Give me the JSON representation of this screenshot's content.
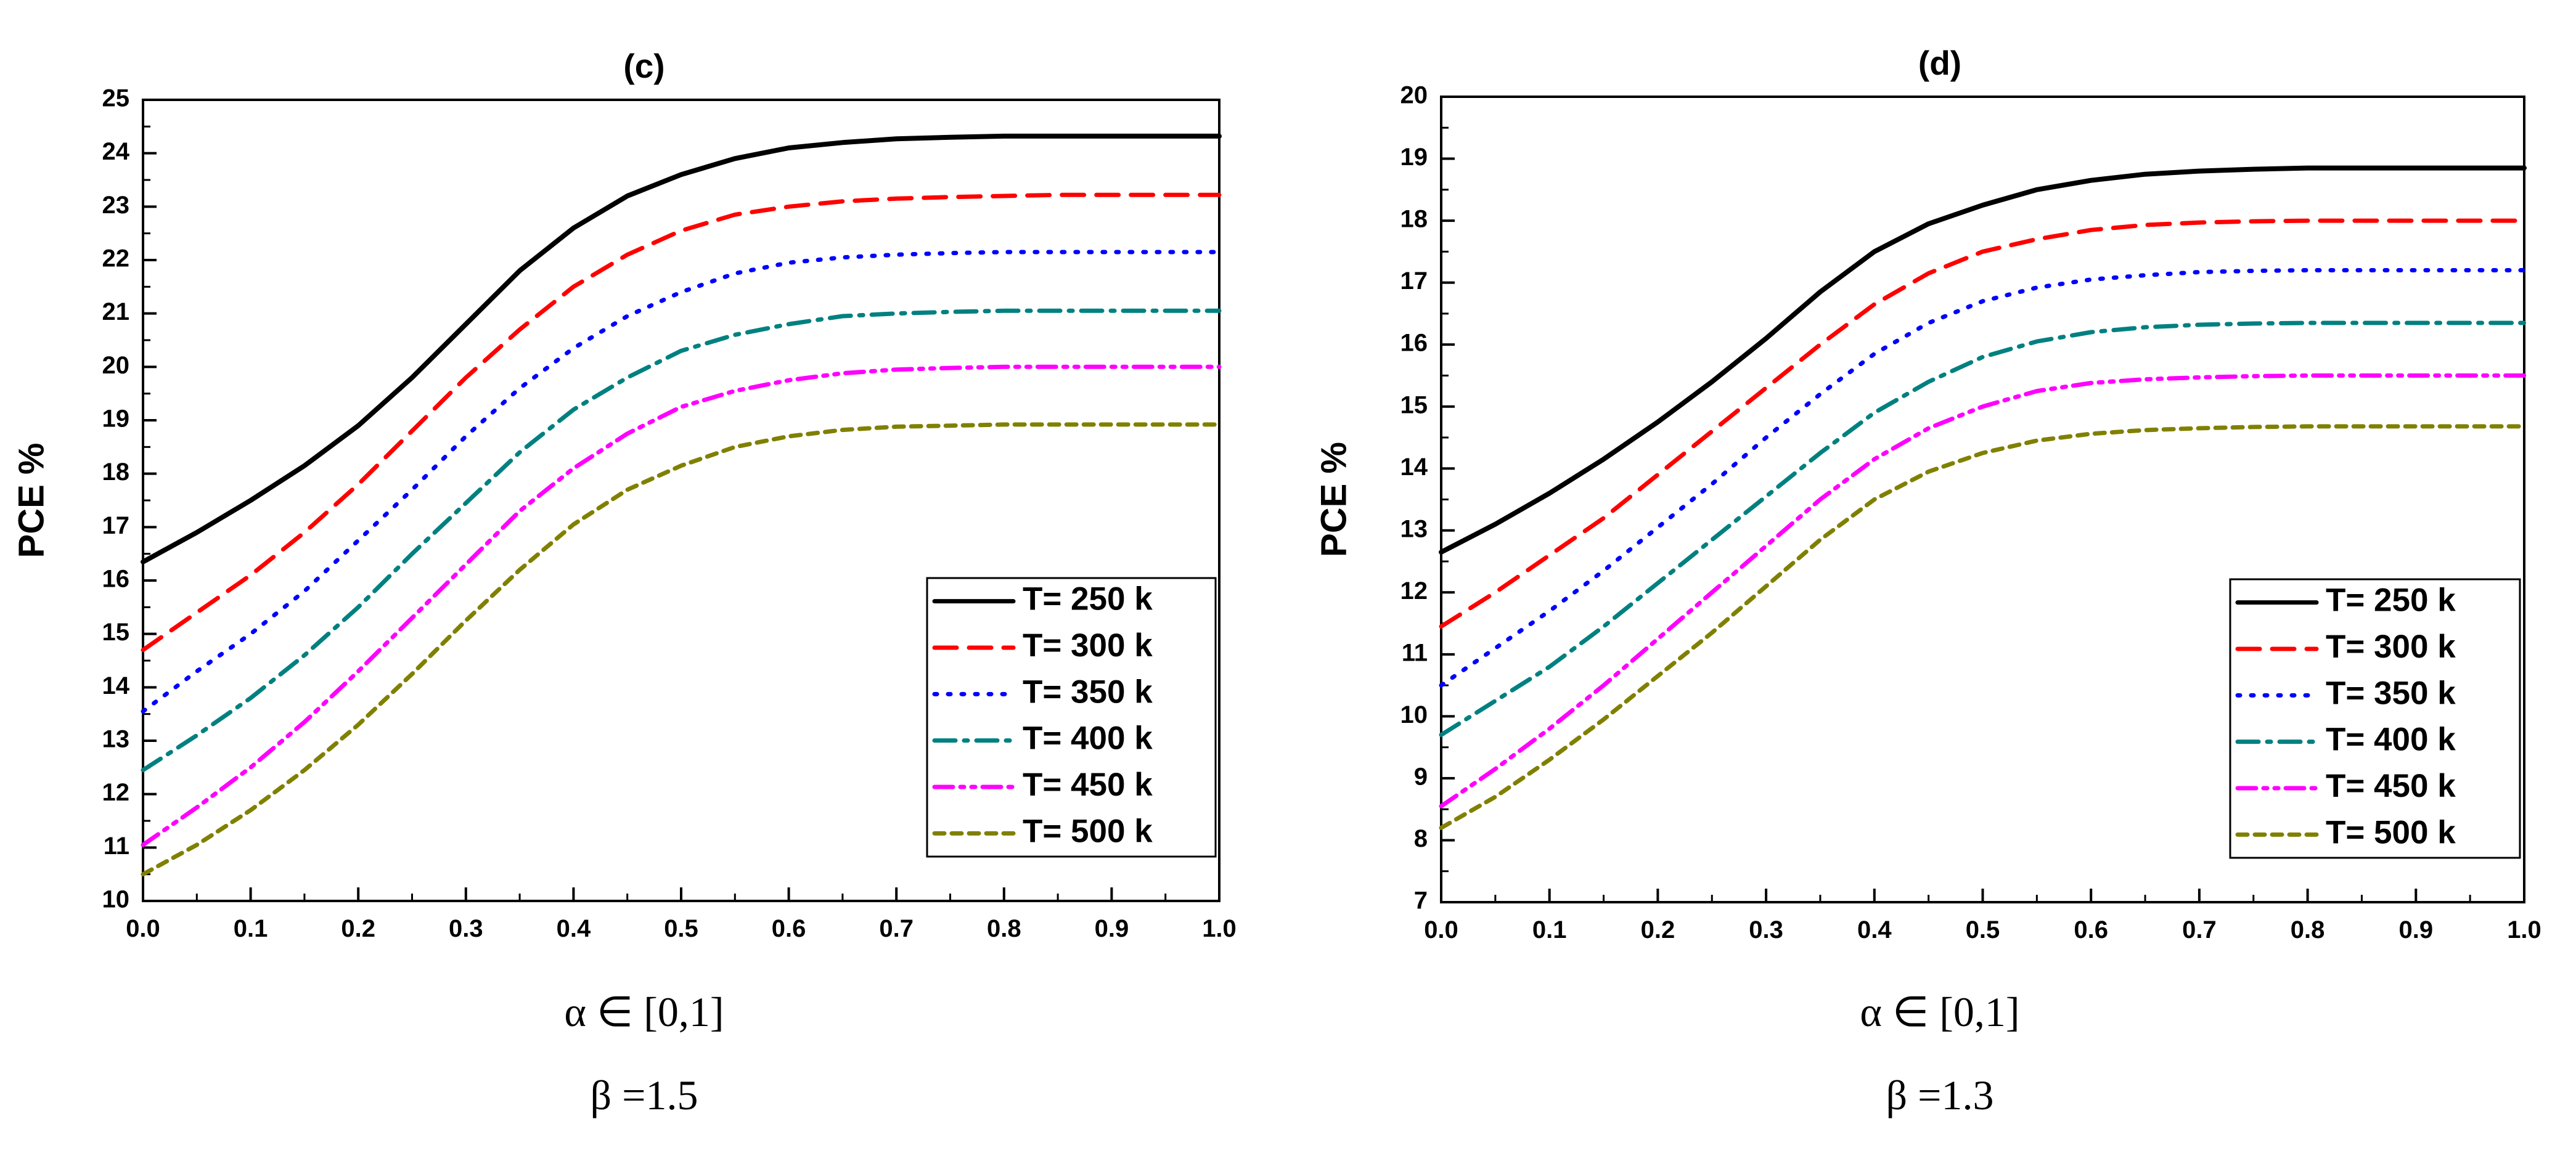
{
  "chart_data": [
    {
      "type": "line",
      "title": "(c)",
      "ylabel": "PCE %",
      "xlabel": "α ∈ [0,1]",
      "param_label": "β =1.5",
      "xlim": [
        0,
        1
      ],
      "ylim": [
        10,
        25
      ],
      "xticks": [
        "0.0",
        "0.1",
        "0.2",
        "0.3",
        "0.4",
        "0.5",
        "0.6",
        "0.7",
        "0.8",
        "0.9",
        "1.0"
      ],
      "yticks": [
        "10",
        "11",
        "12",
        "13",
        "14",
        "15",
        "16",
        "17",
        "18",
        "19",
        "20",
        "21",
        "22",
        "23",
        "24",
        "25"
      ],
      "legend_position": "bottom-right",
      "x": [
        0.0,
        0.05,
        0.1,
        0.15,
        0.2,
        0.25,
        0.3,
        0.35,
        0.4,
        0.45,
        0.5,
        0.55,
        0.6,
        0.65,
        0.7,
        0.75,
        0.8,
        0.85,
        0.9,
        0.95,
        1.0
      ],
      "series": [
        {
          "name": "T= 250 k",
          "color": "#000000",
          "dash": "solid",
          "values": [
            16.35,
            16.9,
            17.5,
            18.15,
            18.9,
            19.8,
            20.8,
            21.8,
            22.6,
            23.2,
            23.6,
            23.9,
            24.1,
            24.2,
            24.27,
            24.3,
            24.32,
            24.32,
            24.32,
            24.32,
            24.32
          ]
        },
        {
          "name": "T= 300 k",
          "color": "#ff0000",
          "dash": "dashed",
          "values": [
            14.7,
            15.4,
            16.1,
            16.9,
            17.8,
            18.8,
            19.8,
            20.7,
            21.5,
            22.1,
            22.55,
            22.85,
            23.0,
            23.1,
            23.15,
            23.18,
            23.2,
            23.22,
            23.22,
            23.22,
            23.22
          ]
        },
        {
          "name": "T= 350 k",
          "color": "#0000ff",
          "dash": "dotted",
          "values": [
            13.55,
            14.3,
            15.0,
            15.8,
            16.75,
            17.7,
            18.7,
            19.6,
            20.35,
            20.95,
            21.4,
            21.75,
            21.95,
            22.05,
            22.1,
            22.13,
            22.15,
            22.15,
            22.15,
            22.15,
            22.15
          ]
        },
        {
          "name": "T= 400 k",
          "color": "#008080",
          "dash": "dash-dot",
          "values": [
            12.45,
            13.1,
            13.8,
            14.6,
            15.5,
            16.5,
            17.45,
            18.4,
            19.2,
            19.8,
            20.3,
            20.6,
            20.8,
            20.95,
            21.0,
            21.03,
            21.05,
            21.05,
            21.05,
            21.05,
            21.05
          ]
        },
        {
          "name": "T= 450 k",
          "color": "#ff00ff",
          "dash": "dash-dot-dot",
          "values": [
            11.05,
            11.75,
            12.5,
            13.35,
            14.3,
            15.3,
            16.3,
            17.3,
            18.1,
            18.75,
            19.25,
            19.55,
            19.75,
            19.88,
            19.95,
            19.98,
            20.0,
            20.0,
            20.0,
            20.0,
            20.0
          ]
        },
        {
          "name": "T= 500 k",
          "color": "#808000",
          "dash": "short-dash",
          "values": [
            10.5,
            11.05,
            11.7,
            12.45,
            13.3,
            14.25,
            15.25,
            16.2,
            17.05,
            17.7,
            18.15,
            18.5,
            18.7,
            18.82,
            18.88,
            18.9,
            18.92,
            18.92,
            18.92,
            18.92,
            18.92
          ]
        }
      ]
    },
    {
      "type": "line",
      "title": "(d)",
      "ylabel": "PCE %",
      "xlabel": "α ∈ [0,1]",
      "param_label": "β =1.3",
      "xlim": [
        0,
        1
      ],
      "ylim": [
        7,
        20
      ],
      "xticks": [
        "0.0",
        "0.1",
        "0.2",
        "0.3",
        "0.4",
        "0.5",
        "0.6",
        "0.7",
        "0.8",
        "0.9",
        "1.0"
      ],
      "yticks": [
        "7",
        "8",
        "9",
        "10",
        "11",
        "12",
        "13",
        "14",
        "15",
        "16",
        "17",
        "18",
        "19",
        "20"
      ],
      "legend_position": "bottom-right",
      "x": [
        0.0,
        0.05,
        0.1,
        0.15,
        0.2,
        0.25,
        0.3,
        0.35,
        0.4,
        0.45,
        0.5,
        0.55,
        0.6,
        0.65,
        0.7,
        0.75,
        0.8,
        0.85,
        0.9,
        0.95,
        1.0
      ],
      "series": [
        {
          "name": "T= 250 k",
          "color": "#000000",
          "dash": "solid",
          "values": [
            12.65,
            13.1,
            13.6,
            14.15,
            14.75,
            15.4,
            16.1,
            16.85,
            17.5,
            17.95,
            18.25,
            18.5,
            18.65,
            18.75,
            18.8,
            18.83,
            18.85,
            18.85,
            18.85,
            18.85,
            18.85
          ]
        },
        {
          "name": "T= 300 k",
          "color": "#ff0000",
          "dash": "dashed",
          "values": [
            11.45,
            12.0,
            12.6,
            13.2,
            13.9,
            14.6,
            15.3,
            16.0,
            16.65,
            17.15,
            17.5,
            17.7,
            17.85,
            17.93,
            17.97,
            17.99,
            18.0,
            18.0,
            18.0,
            18.0,
            18.0
          ]
        },
        {
          "name": "T= 350 k",
          "color": "#0000ff",
          "dash": "dotted",
          "values": [
            10.5,
            11.1,
            11.7,
            12.35,
            13.05,
            13.75,
            14.5,
            15.2,
            15.85,
            16.35,
            16.7,
            16.92,
            17.05,
            17.12,
            17.17,
            17.19,
            17.2,
            17.2,
            17.2,
            17.2,
            17.2
          ]
        },
        {
          "name": "T= 400 k",
          "color": "#008080",
          "dash": "dash-dot",
          "values": [
            9.7,
            10.25,
            10.8,
            11.45,
            12.15,
            12.85,
            13.55,
            14.25,
            14.9,
            15.4,
            15.8,
            16.05,
            16.2,
            16.28,
            16.32,
            16.34,
            16.35,
            16.35,
            16.35,
            16.35,
            16.35
          ]
        },
        {
          "name": "T= 450 k",
          "color": "#ff00ff",
          "dash": "dash-dot-dot",
          "values": [
            8.55,
            9.15,
            9.8,
            10.5,
            11.25,
            12.0,
            12.75,
            13.5,
            14.15,
            14.65,
            15.0,
            15.25,
            15.38,
            15.44,
            15.47,
            15.49,
            15.5,
            15.5,
            15.5,
            15.5,
            15.5
          ]
        },
        {
          "name": "T= 500 k",
          "color": "#808000",
          "dash": "short-dash",
          "values": [
            8.2,
            8.7,
            9.3,
            9.95,
            10.65,
            11.35,
            12.1,
            12.85,
            13.5,
            13.95,
            14.25,
            14.45,
            14.56,
            14.62,
            14.65,
            14.67,
            14.68,
            14.68,
            14.68,
            14.68,
            14.68
          ]
        }
      ]
    }
  ]
}
